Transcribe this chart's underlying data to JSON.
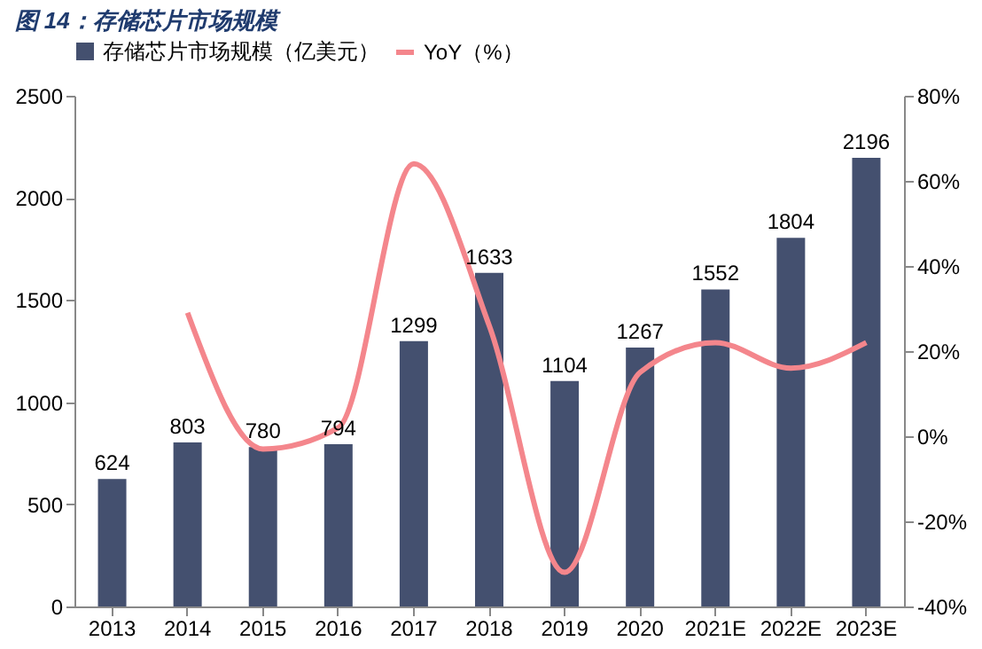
{
  "chart_data": {
    "type": "bar",
    "title": "图 14：存储芯片市场规模",
    "categories": [
      "2013",
      "2014",
      "2015",
      "2016",
      "2017",
      "2018",
      "2019",
      "2020",
      "2021E",
      "2022E",
      "2023E"
    ],
    "series": [
      {
        "name": "存储芯片市场规模（亿美元）",
        "color": "#44506f",
        "values": [
          624,
          803,
          780,
          794,
          1299,
          1633,
          1104,
          1267,
          1552,
          1804,
          2196
        ],
        "value_labels": [
          "624",
          "803",
          "780",
          "794",
          "1299",
          "1633",
          "1104",
          "1267",
          "1552",
          "1804",
          "2196"
        ]
      },
      {
        "name": "YoY（%）",
        "type": "line",
        "axis": "y2",
        "color": "#f4868c",
        "values": [
          null,
          29,
          -3,
          2,
          64,
          26,
          -32,
          15,
          22,
          16,
          22
        ]
      }
    ],
    "ylim": [
      0,
      2500
    ],
    "yticks": [
      0,
      500,
      1000,
      1500,
      2000,
      2500
    ],
    "y2lim": [
      -40,
      80
    ],
    "y2ticks": [
      {
        "value": -40,
        "label": "-40%"
      },
      {
        "value": -20,
        "label": "-20%"
      },
      {
        "value": 0,
        "label": "0%"
      },
      {
        "value": 20,
        "label": "20%"
      },
      {
        "value": 40,
        "label": "40%"
      },
      {
        "value": 60,
        "label": "60%"
      },
      {
        "value": 80,
        "label": "80%"
      }
    ],
    "legend": "top",
    "grid": false
  }
}
